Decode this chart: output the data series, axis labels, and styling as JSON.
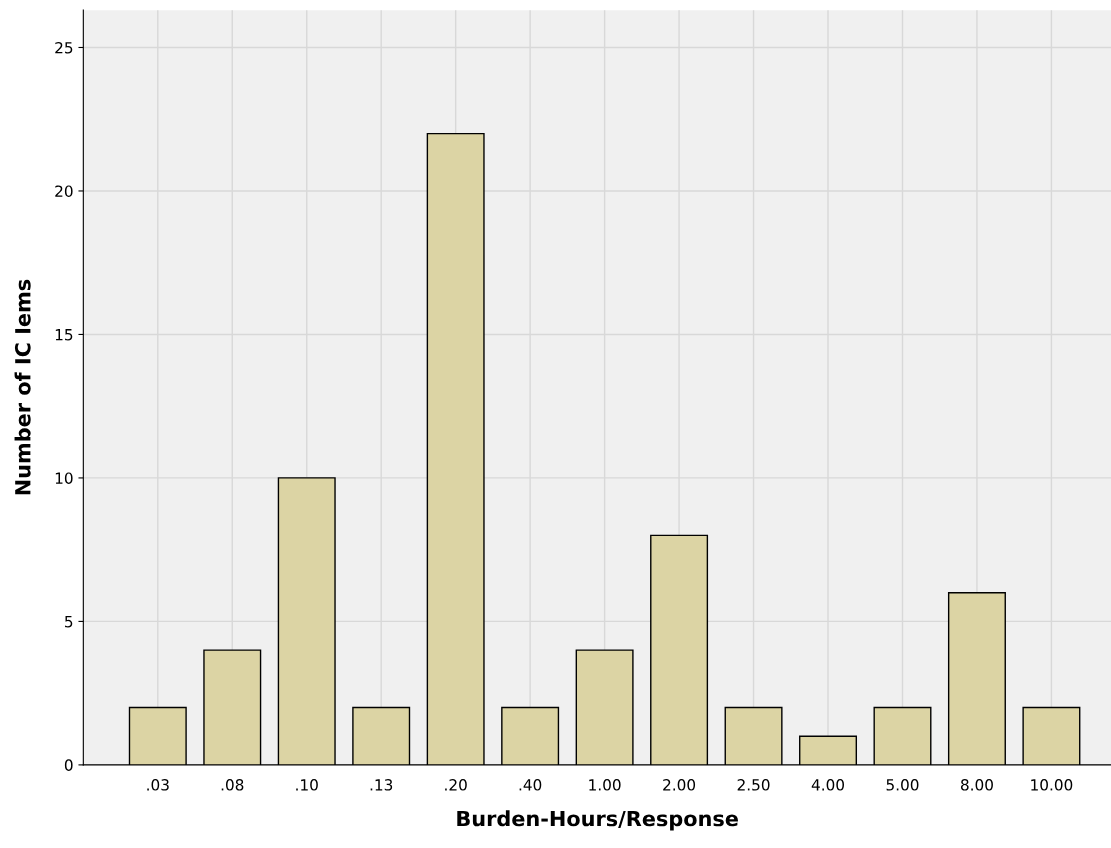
{
  "chart_data": {
    "type": "bar",
    "xlabel": "Burden-Hours/Response",
    "ylabel": "Number of IC Iems",
    "categories": [
      ".03",
      ".08",
      ".10",
      ".13",
      ".20",
      ".40",
      "1.00",
      "2.00",
      "2.50",
      "4.00",
      "5.00",
      "8.00",
      "10.00"
    ],
    "values": [
      2,
      4,
      10,
      2,
      22,
      2,
      4,
      8,
      2,
      1,
      2,
      6,
      2
    ],
    "color": "#dcd4a4",
    "ylim": [
      0,
      26.3
    ],
    "yticks": [
      0,
      5,
      10,
      15,
      20,
      25
    ],
    "grid": true
  }
}
